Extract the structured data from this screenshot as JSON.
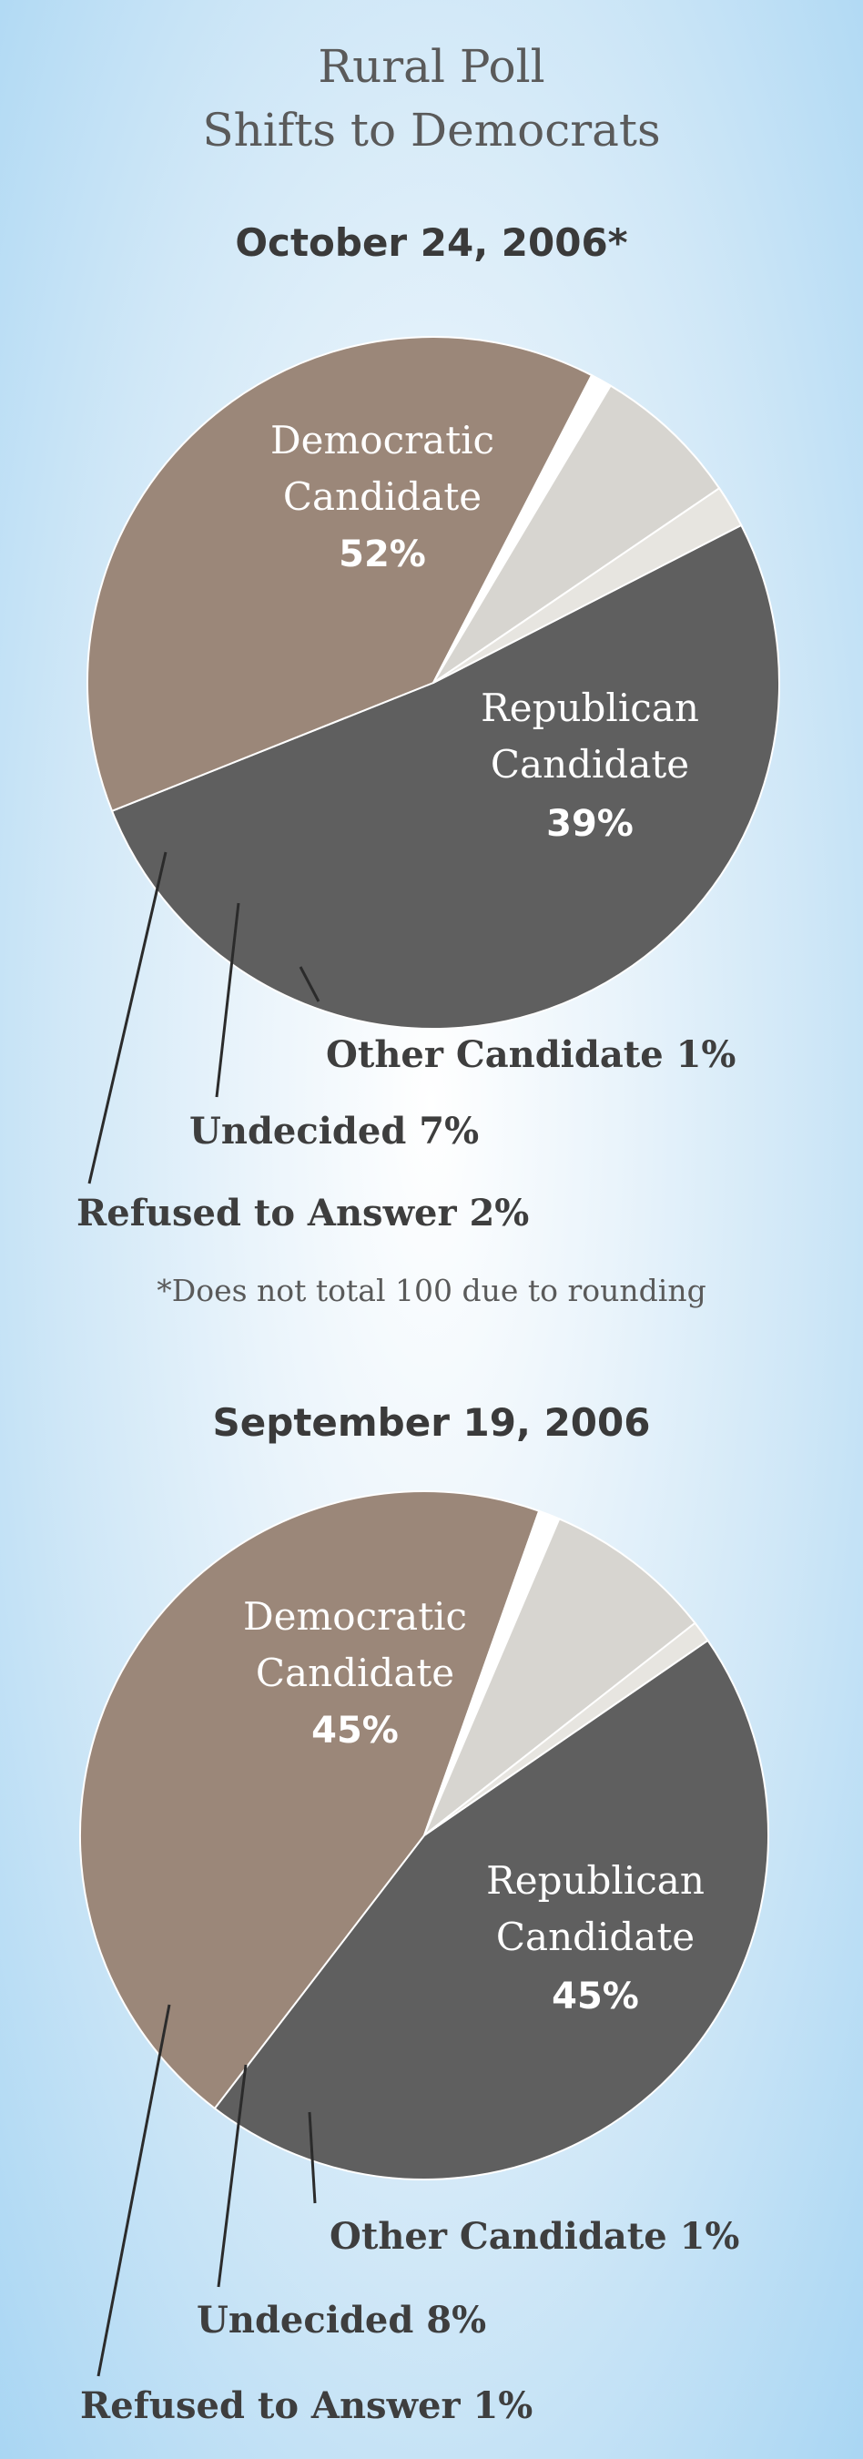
{
  "header": {
    "title_line1": "Rural Poll",
    "title_line2": "Shifts to Democrats"
  },
  "footnote": "*Does not total 100 due to rounding",
  "colors": {
    "democratic": "#5f5f5f",
    "republican": "#9b8779",
    "other": "#ffffff",
    "undecided": "#d7d5d0",
    "refused": "#e7e5e0"
  },
  "chart_data": [
    {
      "type": "pie",
      "title": "October 24, 2006*",
      "slices": [
        {
          "name": "Democratic Candidate",
          "line1": "Democratic",
          "line2": "Candidate",
          "value": 52,
          "pct_label": "52%"
        },
        {
          "name": "Republican Candidate",
          "line1": "Republican",
          "line2": "Candidate",
          "value": 39,
          "pct_label": "39%"
        },
        {
          "name": "Other Candidate",
          "label": "Other Candidate 1%",
          "value": 1
        },
        {
          "name": "Undecided",
          "label": "Undecided 7%",
          "value": 7
        },
        {
          "name": "Refused to Answer",
          "label": "Refused to Answer 2%",
          "value": 2
        }
      ]
    },
    {
      "type": "pie",
      "title": "September 19, 2006",
      "slices": [
        {
          "name": "Democratic Candidate",
          "line1": "Democratic",
          "line2": "Candidate",
          "value": 45,
          "pct_label": "45%"
        },
        {
          "name": "Republican Candidate",
          "line1": "Republican",
          "line2": "Candidate",
          "value": 45,
          "pct_label": "45%"
        },
        {
          "name": "Other Candidate",
          "label": "Other Candidate 1%",
          "value": 1
        },
        {
          "name": "Undecided",
          "label": "Undecided 8%",
          "value": 8
        },
        {
          "name": "Refused to Answer",
          "label": "Refused to Answer 1%",
          "value": 1
        }
      ]
    }
  ]
}
